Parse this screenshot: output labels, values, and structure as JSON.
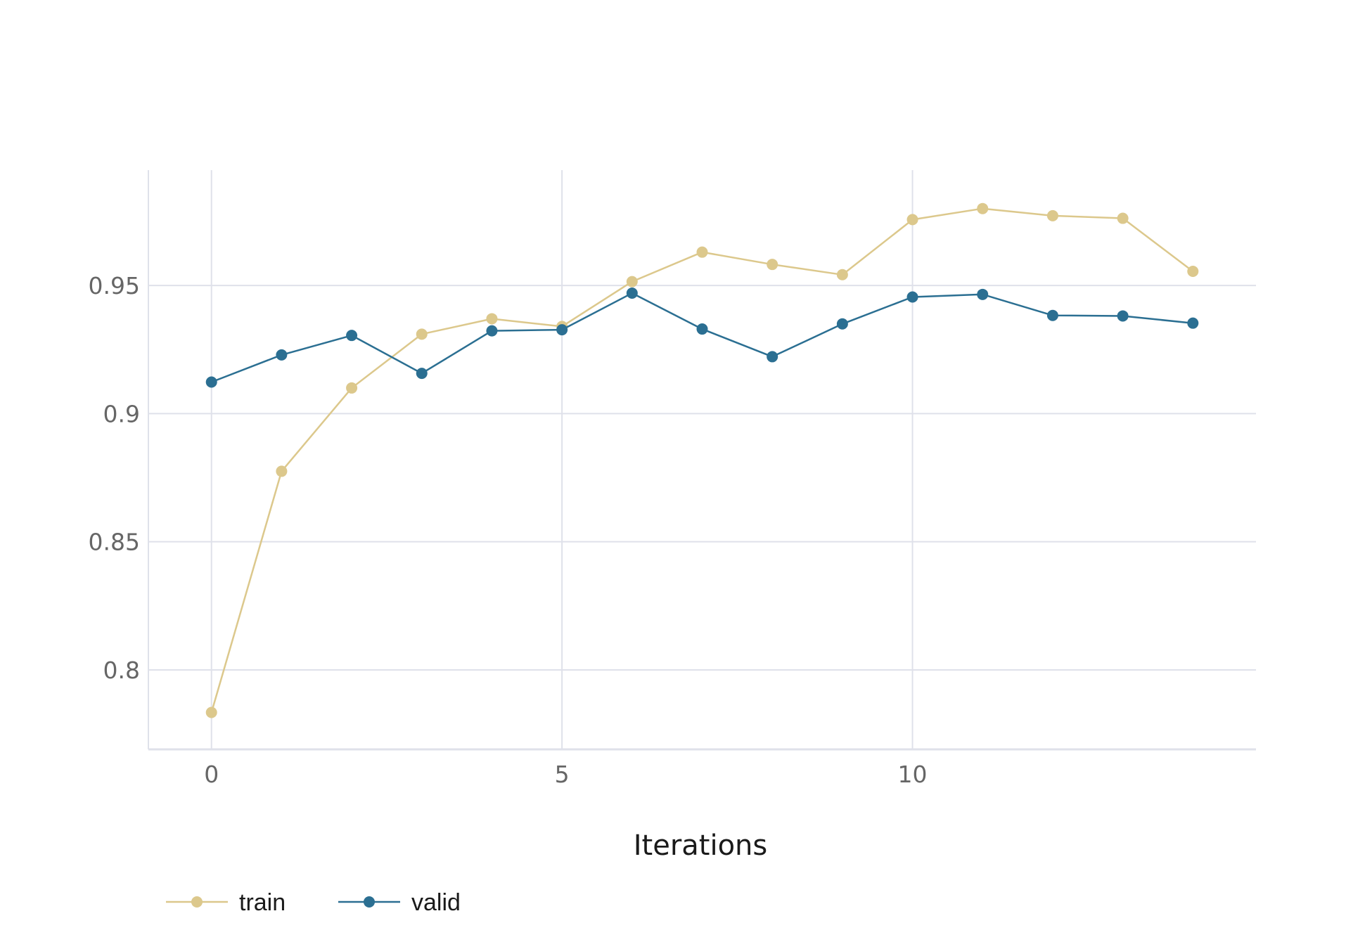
{
  "chart_data": {
    "type": "line",
    "xlabel": "Iterations",
    "ylabel": "",
    "xlim": [
      -0.9,
      14.9
    ],
    "ylim": [
      0.769,
      0.995
    ],
    "x_ticks": [
      0,
      5,
      10
    ],
    "x_tick_labels": [
      "0",
      "5",
      "10"
    ],
    "y_ticks": [
      0.8,
      0.85,
      0.9,
      0.95
    ],
    "y_tick_labels": [
      "0.8",
      "0.85",
      "0.9",
      "0.95"
    ],
    "grid": true,
    "legend_position": "bottom-left",
    "series": [
      {
        "name": "train",
        "color": "#dcc88c",
        "x": [
          0,
          1,
          2,
          3,
          4,
          5,
          6,
          7,
          8,
          9,
          10,
          11,
          12,
          13,
          14
        ],
        "y": [
          0.7834,
          0.8775,
          0.91,
          0.931,
          0.937,
          0.934,
          0.9515,
          0.963,
          0.9582,
          0.9542,
          0.9757,
          0.98,
          0.9772,
          0.9762,
          0.9555
        ]
      },
      {
        "name": "valid",
        "color": "#2b6f92",
        "x": [
          0,
          1,
          2,
          3,
          4,
          5,
          6,
          7,
          8,
          9,
          10,
          11,
          12,
          13,
          14
        ],
        "y": [
          0.9123,
          0.9229,
          0.9305,
          0.9157,
          0.9323,
          0.9327,
          0.947,
          0.933,
          0.9222,
          0.935,
          0.9455,
          0.9465,
          0.9383,
          0.9381,
          0.9353
        ]
      }
    ]
  }
}
